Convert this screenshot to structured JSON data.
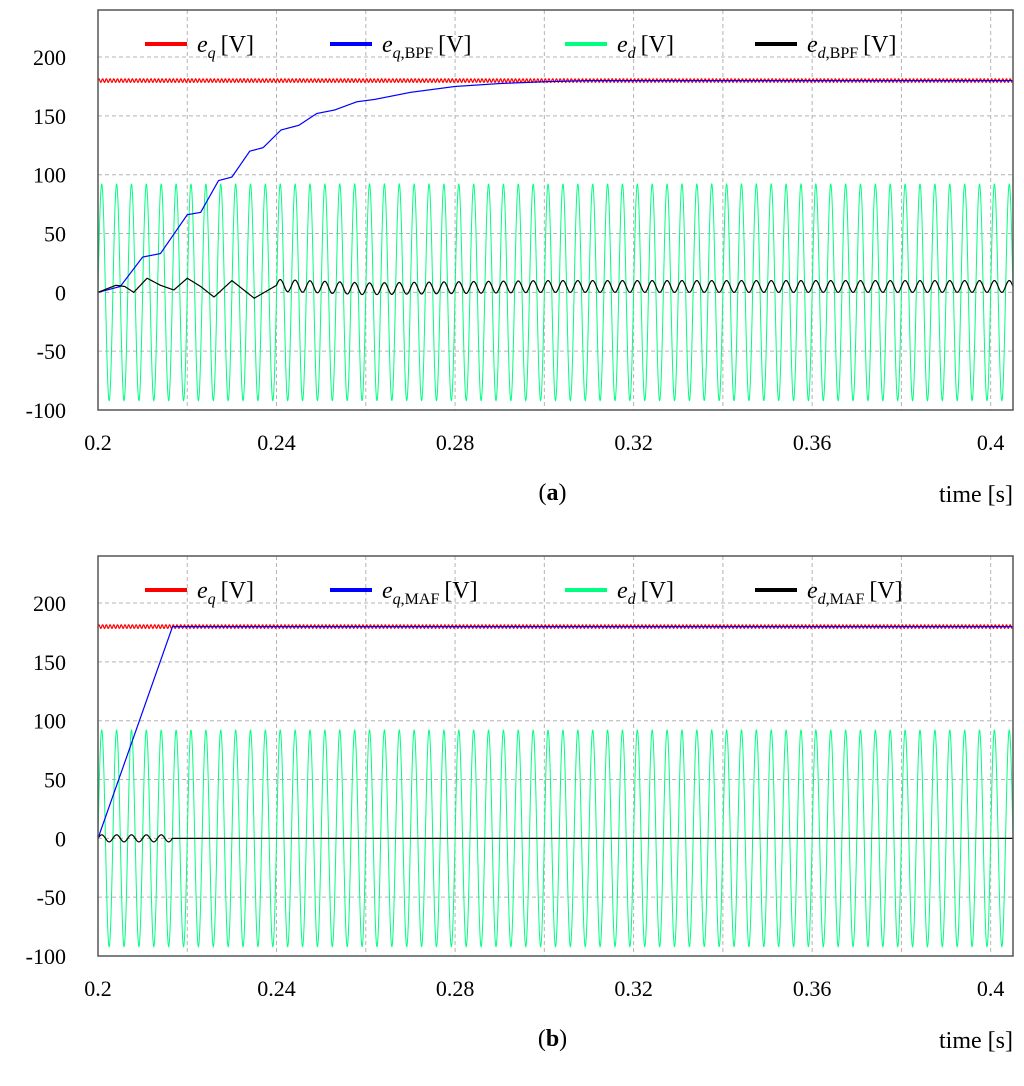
{
  "chart_data": [
    {
      "type": "line",
      "caption": "(a)",
      "xlabel": "time [s]",
      "xlim": [
        0.2,
        0.405
      ],
      "ylim": [
        -100,
        240
      ],
      "xticks": [
        "0.2",
        "0.24",
        "0.28",
        "0.32",
        "0.36",
        "0.4"
      ],
      "yticks": [
        "200",
        "150",
        "100",
        "50",
        "0",
        "-50",
        "-100"
      ],
      "grid": true,
      "legend_position": "top",
      "legend": [
        {
          "var": "e",
          "sub": "q",
          "subtext": "",
          "unit": "[V]",
          "color": "#ff0000"
        },
        {
          "var": "e",
          "sub": "q",
          "subtext": ",BPF",
          "unit": "[V]",
          "color": "#0000ff"
        },
        {
          "var": "e",
          "sub": "d",
          "subtext": "",
          "unit": "[V]",
          "color": "#00ff80"
        },
        {
          "var": "e",
          "sub": "d",
          "subtext": ",BPF",
          "unit": "[V]",
          "color": "#000000"
        }
      ],
      "series": [
        {
          "color": "#ff0000",
          "model": "const_ripple",
          "level": 180,
          "ripple": 1.5
        },
        {
          "color": "#0000ff",
          "points": [
            [
              0.2,
              0
            ],
            [
              0.205,
              5
            ],
            [
              0.21,
              30
            ],
            [
              0.214,
              33
            ],
            [
              0.22,
              66
            ],
            [
              0.223,
              68
            ],
            [
              0.227,
              95
            ],
            [
              0.23,
              98
            ],
            [
              0.234,
              120
            ],
            [
              0.237,
              123
            ],
            [
              0.241,
              138
            ],
            [
              0.245,
              142
            ],
            [
              0.249,
              152
            ],
            [
              0.253,
              155
            ],
            [
              0.258,
              162
            ],
            [
              0.262,
              164
            ],
            [
              0.27,
              170
            ],
            [
              0.28,
              175
            ],
            [
              0.29,
              177.5
            ],
            [
              0.3,
              179
            ],
            [
              0.31,
              180
            ],
            [
              0.32,
              180
            ],
            [
              0.405,
              180
            ]
          ]
        },
        {
          "color": "#00ff80",
          "model": "sine",
          "amplitude": 92,
          "frequency_hz": 300,
          "start": 0.2
        },
        {
          "color": "#000000",
          "model": "decaying_ripple",
          "start": 0.2,
          "points": [
            [
              0.2,
              0
            ],
            [
              0.204,
              6
            ],
            [
              0.206,
              5
            ],
            [
              0.208,
              0
            ],
            [
              0.211,
              12
            ],
            [
              0.214,
              6
            ],
            [
              0.217,
              2
            ],
            [
              0.22,
              12
            ],
            [
              0.223,
              5
            ],
            [
              0.226,
              -4
            ],
            [
              0.23,
              10
            ],
            [
              0.235,
              -5
            ],
            [
              0.24,
              6
            ],
            [
              0.26,
              3
            ],
            [
              0.3,
              5
            ],
            [
              0.405,
              5
            ]
          ],
          "ripple_amp": 5,
          "ripple_hz": 300
        }
      ]
    },
    {
      "type": "line",
      "caption": "(b)",
      "xlabel": "time [s]",
      "xlim": [
        0.2,
        0.405
      ],
      "ylim": [
        -100,
        240
      ],
      "xticks": [
        "0.2",
        "0.24",
        "0.28",
        "0.32",
        "0.36",
        "0.4"
      ],
      "yticks": [
        "200",
        "150",
        "100",
        "50",
        "0",
        "-50",
        "-100"
      ],
      "grid": true,
      "legend_position": "top",
      "legend": [
        {
          "var": "e",
          "sub": "q",
          "subtext": "",
          "unit": "[V]",
          "color": "#ff0000"
        },
        {
          "var": "e",
          "sub": "q",
          "subtext": ",MAF",
          "unit": "[V]",
          "color": "#0000ff"
        },
        {
          "var": "e",
          "sub": "d",
          "subtext": "",
          "unit": "[V]",
          "color": "#00ff80"
        },
        {
          "var": "e",
          "sub": "d",
          "subtext": ",MAF",
          "unit": "[V]",
          "color": "#000000"
        }
      ],
      "series": [
        {
          "color": "#ff0000",
          "model": "const_ripple",
          "level": 180,
          "ripple": 1.5
        },
        {
          "color": "#0000ff",
          "points": [
            [
              0.2,
              0
            ],
            [
              0.2167,
              180
            ],
            [
              0.405,
              180
            ]
          ]
        },
        {
          "color": "#00ff80",
          "model": "sine",
          "amplitude": 92,
          "frequency_hz": 300,
          "start": 0.2
        },
        {
          "color": "#000000",
          "model": "ripple_then_flat",
          "start": 0.2,
          "end_ripple": 0.2167,
          "ripple_amp": 3,
          "ripple_hz": 300,
          "points": [
            [
              0.2,
              0
            ],
            [
              0.405,
              0
            ]
          ]
        }
      ]
    }
  ]
}
